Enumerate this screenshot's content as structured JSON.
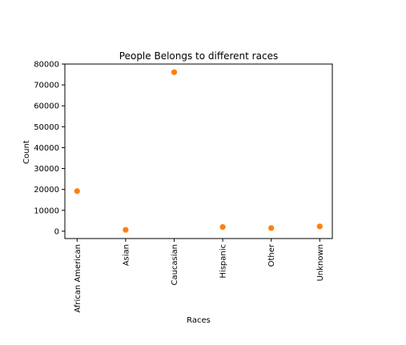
{
  "chart_data": {
    "type": "scatter",
    "title": "People Belongs to different races",
    "xlabel": "Races",
    "ylabel": "Count",
    "categories": [
      "African American",
      "Asian",
      "Caucasian",
      "Hispanic",
      "Other",
      "Unknown"
    ],
    "values": [
      19200,
      650,
      76100,
      2000,
      1500,
      2300
    ],
    "ylim": [
      -3500,
      80000
    ],
    "yticks": [
      0,
      10000,
      20000,
      30000,
      40000,
      50000,
      60000,
      70000,
      80000
    ],
    "ytick_labels": [
      "0",
      "10000",
      "20000",
      "30000",
      "40000",
      "50000",
      "60000",
      "70000",
      "80000"
    ],
    "grid": false,
    "point_color": "#ff7f0e",
    "axis_color": "#000000"
  }
}
